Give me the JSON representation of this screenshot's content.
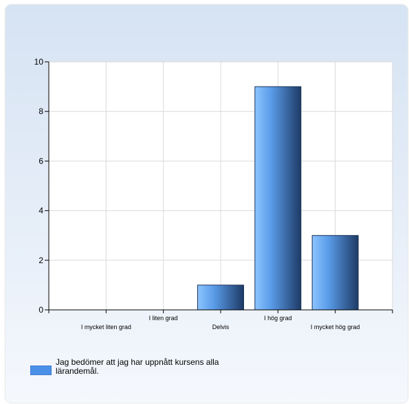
{
  "chart_data": {
    "type": "bar",
    "categories": [
      "I mycket liten grad",
      "I liten grad",
      "Delvis",
      "I hög grad",
      "I mycket hög grad"
    ],
    "series": [
      {
        "name": "Jag bedömer att jag har uppnått kursens alla lärandemål.",
        "values": [
          0,
          0,
          1,
          9,
          3
        ]
      }
    ],
    "ylim": [
      0,
      10
    ],
    "yticks": [
      0,
      2,
      4,
      6,
      8,
      10
    ],
    "grid": true,
    "legend": "bottom-left",
    "colors": {
      "bar_light": "#8cc0fc",
      "bar_dark": "#1f3f6e",
      "bar_mid": "#4a90e8"
    }
  },
  "legend": {
    "label": "Jag bedömer att jag har uppnått kursens alla lärandemål."
  }
}
